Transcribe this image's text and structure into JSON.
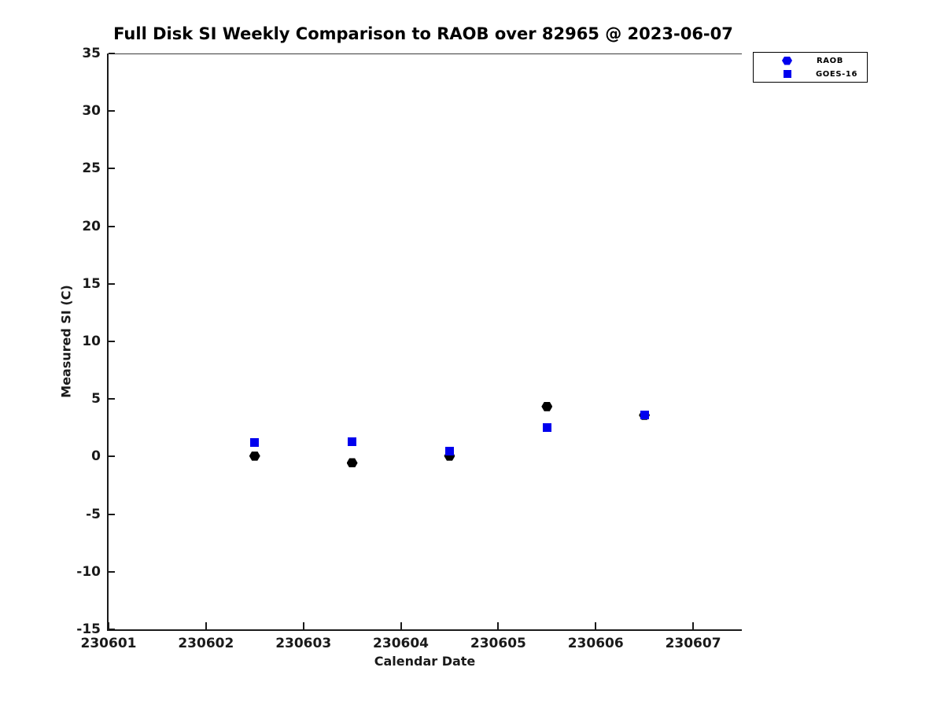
{
  "chart_data": {
    "type": "scatter",
    "title": "Full Disk SI Weekly Comparison to RAOB over 82965 @ 2023-06-07",
    "xlabel": "Calendar Date",
    "ylabel": "Measured SI (C)",
    "xlim": [
      230601,
      230607.5
    ],
    "ylim": [
      -15,
      35
    ],
    "xticks": [
      230601,
      230602,
      230603,
      230604,
      230605,
      230606,
      230607
    ],
    "yticks": [
      35,
      30,
      25,
      20,
      15,
      10,
      5,
      0,
      -5,
      -10,
      -15
    ],
    "grid": false,
    "legend_position": "top-right-outside",
    "colors": {
      "blue": "#0000ee",
      "black": "#000000",
      "axis": "#1a1a1a"
    },
    "series": [
      {
        "name": "RAOB",
        "marker": "hexagon",
        "plot_color": "#000000",
        "legend_color": "#0000ee",
        "x": [
          230602.5,
          230603.5,
          230604.5,
          230605.5,
          230606.5
        ],
        "y": [
          0.05,
          -0.55,
          0.05,
          4.35,
          3.6
        ]
      },
      {
        "name": "GOES-16",
        "marker": "square",
        "plot_color": "#0000ee",
        "legend_color": "#0000ee",
        "x": [
          230602.5,
          230603.5,
          230604.5,
          230605.5,
          230606.5
        ],
        "y": [
          1.25,
          1.3,
          0.45,
          2.55,
          3.6
        ]
      }
    ]
  }
}
